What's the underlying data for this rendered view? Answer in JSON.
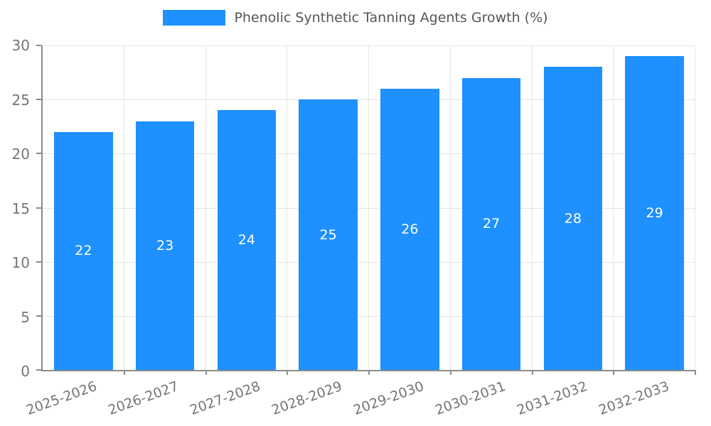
{
  "legend": {
    "swatch_icon": "legend-color-swatch"
  },
  "chart_data": {
    "type": "bar",
    "title": "Phenolic Synthetic Tanning Agents Growth (%)",
    "categories": [
      "2025-2026",
      "2026-2027",
      "2027-2028",
      "2028-2029",
      "2029-2030",
      "2030-2031",
      "2031-2032",
      "2032-2033"
    ],
    "values": [
      22,
      23,
      24,
      25,
      26,
      27,
      28,
      29
    ],
    "xlabel": "",
    "ylabel": "",
    "ylim": [
      0,
      30
    ],
    "yticks": [
      0,
      5,
      10,
      15,
      20,
      25,
      30
    ],
    "grid": true,
    "legend_position": "top",
    "bar_color": "#1E90FF",
    "value_label_color": "#ffffff",
    "axis_color": "#8b8b8b",
    "grid_color": "#e5e5e5",
    "tick_label_color": "#757575",
    "title_color": "#555555"
  }
}
